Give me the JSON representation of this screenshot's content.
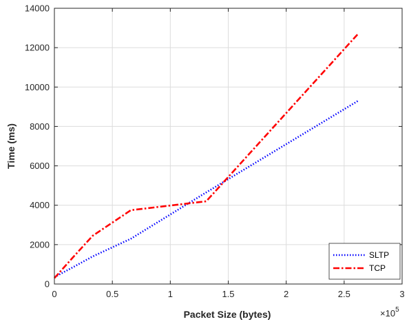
{
  "chart_data": {
    "type": "line",
    "title": "",
    "xlabel": "Packet Size (bytes)",
    "ylabel": "Time (ms)",
    "x_exponent_label": "×10",
    "x_exponent_power": "5",
    "xlim": [
      0,
      3
    ],
    "ylim": [
      0,
      14000
    ],
    "x_ticks": [
      0,
      0.5,
      1,
      1.5,
      2,
      2.5,
      3
    ],
    "x_tick_labels": [
      "0",
      "0.5",
      "1",
      "1.5",
      "2",
      "2.5",
      "3"
    ],
    "y_ticks": [
      0,
      2000,
      4000,
      6000,
      8000,
      10000,
      12000,
      14000
    ],
    "y_tick_labels": [
      "0",
      "2000",
      "4000",
      "6000",
      "8000",
      "10000",
      "12000",
      "14000"
    ],
    "grid": true,
    "legend_position": "bottom-right",
    "series": [
      {
        "name": "SLTP",
        "color": "#0000ff",
        "style": "dotted",
        "x": [
          0,
          0.16,
          0.33,
          0.66,
          1.31,
          2.62
        ],
        "y": [
          350,
          850,
          1400,
          2300,
          4650,
          9300
        ]
      },
      {
        "name": "TCP",
        "color": "#ff0000",
        "style": "dash-dot",
        "x": [
          0,
          0.16,
          0.33,
          0.66,
          1.31,
          2.62
        ],
        "y": [
          300,
          1350,
          2450,
          3750,
          4200,
          12700
        ]
      }
    ]
  }
}
